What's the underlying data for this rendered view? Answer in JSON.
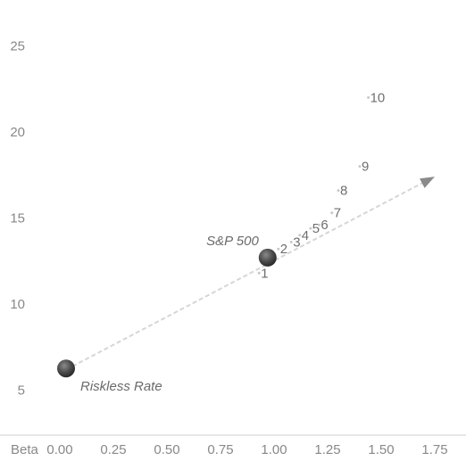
{
  "chart_data": {
    "type": "scatter",
    "title": "",
    "xlabel": "Beta",
    "ylabel": "",
    "xlim": [
      0.0,
      1.75
    ],
    "ylim": [
      0,
      25
    ],
    "x_ticks": [
      "0.00",
      "0.25",
      "0.50",
      "0.75",
      "1.00",
      "1.25",
      "1.50",
      "1.75"
    ],
    "y_ticks": [
      "5",
      "10",
      "15",
      "20",
      "25"
    ],
    "grid": false,
    "annotations": [
      {
        "label": "Riskless Rate",
        "x": 0.0,
        "y": 6.0
      },
      {
        "label": "S&P 500",
        "x": 0.97,
        "y": 12.7
      }
    ],
    "market_line": {
      "from": [
        0.0,
        6.0
      ],
      "to": [
        1.75,
        17.4
      ]
    },
    "series": [
      {
        "values": [
          {
            "label": "1",
            "x": 0.93,
            "y": 11.8
          },
          {
            "label": "2",
            "x": 1.02,
            "y": 13.2
          },
          {
            "label": "3",
            "x": 1.08,
            "y": 13.6
          },
          {
            "label": "4",
            "x": 1.12,
            "y": 14.0
          },
          {
            "label": "5",
            "x": 1.17,
            "y": 14.4
          },
          {
            "label": "6",
            "x": 1.21,
            "y": 14.6
          },
          {
            "label": "7",
            "x": 1.27,
            "y": 15.3
          },
          {
            "label": "8",
            "x": 1.3,
            "y": 16.6
          },
          {
            "label": "9",
            "x": 1.4,
            "y": 18.0
          },
          {
            "label": "10",
            "x": 1.44,
            "y": 22.0
          }
        ]
      }
    ]
  }
}
